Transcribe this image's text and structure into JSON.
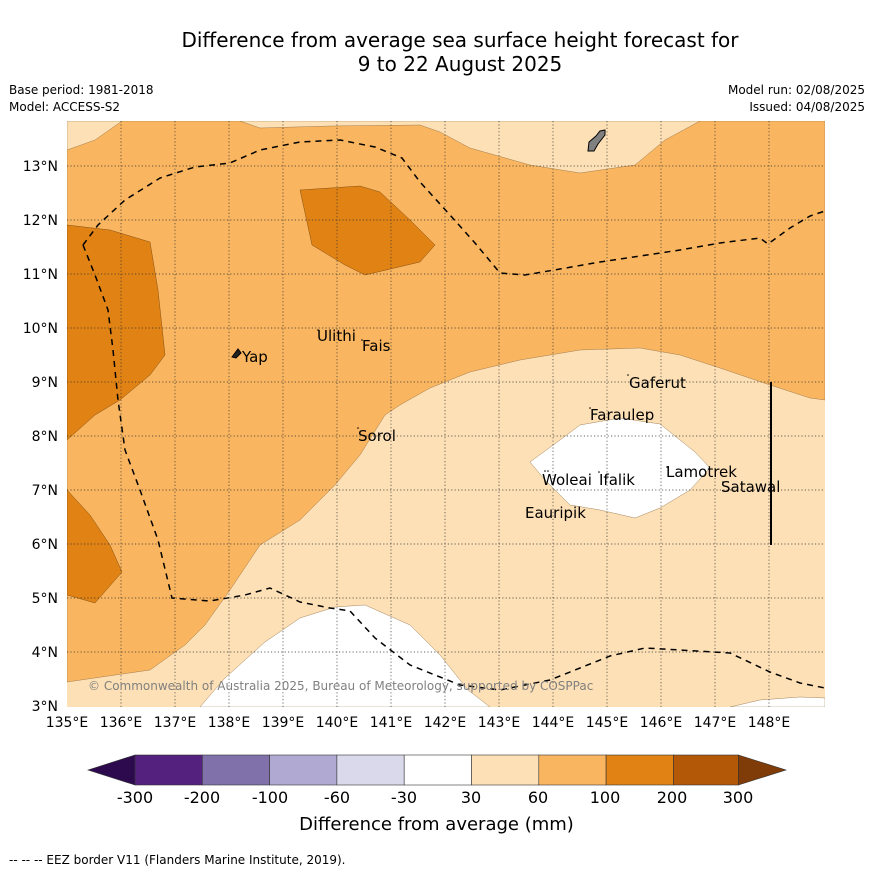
{
  "title_line1": "Difference from average sea surface height forecast for",
  "title_line2": "9 to 22 August 2025",
  "base_period": "Base period: 1981-2018",
  "model": "Model: ACCESS-S2",
  "model_run": "Model run: 02/08/2025",
  "issued": "Issued: 04/08/2025",
  "copyright": "© Commonwealth of Australia 2025, Bureau of Meteorology, supported by COSPPac",
  "lon_labels": [
    "135°E",
    "136°E",
    "137°E",
    "138°E",
    "139°E",
    "140°E",
    "141°E",
    "142°E",
    "143°E",
    "144°E",
    "145°E",
    "146°E",
    "147°E",
    "148°E"
  ],
  "lat_labels": [
    "3°N",
    "4°N",
    "5°N",
    "6°N",
    "7°N",
    "8°N",
    "9°N",
    "10°N",
    "11°N",
    "12°N",
    "13°N"
  ],
  "places": [
    {
      "name": "Yap"
    },
    {
      "name": "Ulithi"
    },
    {
      "name": "Fais"
    },
    {
      "name": "Gaferut"
    },
    {
      "name": "Faraulep"
    },
    {
      "name": "Sorol"
    },
    {
      "name": "Lamotrek"
    },
    {
      "name": "Woleai"
    },
    {
      "name": "Ifalik"
    },
    {
      "name": "Satawal"
    },
    {
      "name": "Eauripik"
    }
  ],
  "colorbar": {
    "label": "Difference from average (mm)",
    "ticks": [
      "-300",
      "-200",
      "-100",
      "-60",
      "-30",
      "30",
      "60",
      "100",
      "200",
      "300"
    ],
    "colors": {
      "below_min": "#2d0a4e",
      "-300_-200": "#54217f",
      "-200_-100": "#8071ab",
      "-100_-60": "#b0a9d2",
      "-60_-30": "#d9d9eb",
      "-30_30": "#ffffff",
      "30_60": "#fde0b5",
      "60_100": "#f9b55f",
      "100_200": "#e08214",
      "200_300": "#b35806",
      "above_max": "#7f3b08"
    }
  },
  "footnote": "--  --  -- EEZ border V11 (Flanders Marine Institute, 2019)."
}
